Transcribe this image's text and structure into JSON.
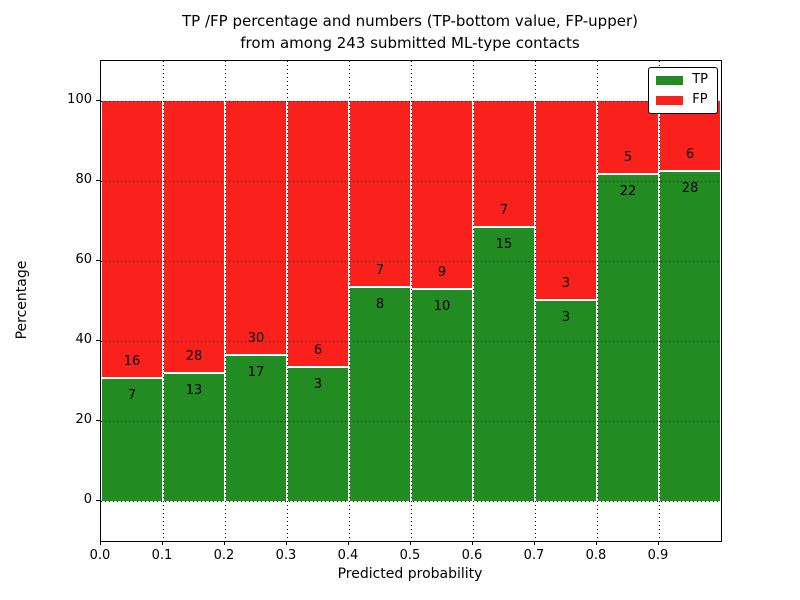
{
  "figure": {
    "title_line1": "TP /FP percentage and numbers (TP-bottom value, FP-upper)",
    "title_line2": "from among 243 submitted ML-type contacts"
  },
  "chart_data": {
    "type": "bar",
    "subtype": "stacked-percentage-histogram",
    "title": "TP /FP percentage and numbers (TP-bottom value, FP-upper) from among 243 submitted ML-type contacts",
    "xlabel": "Predicted probability",
    "ylabel": "Percentage",
    "xlim": [
      0.0,
      1.0
    ],
    "ylim": [
      -10,
      110
    ],
    "bin_width": 0.1,
    "bin_starts": [
      0.0,
      0.1,
      0.2,
      0.3,
      0.4,
      0.5,
      0.6,
      0.7,
      0.8,
      0.9
    ],
    "xtick_labels": [
      "0.0",
      "0.1",
      "0.2",
      "0.3",
      "0.4",
      "0.5",
      "0.6",
      "0.7",
      "0.8",
      "0.9"
    ],
    "ytick_values": [
      0,
      20,
      40,
      60,
      80,
      100
    ],
    "total_contacts": 243,
    "grid": {
      "style": "dotted",
      "color": "#000000"
    },
    "legend": {
      "position": "upper-right"
    },
    "series": [
      {
        "name": "TP",
        "color": "#228b22",
        "counts": [
          7,
          13,
          17,
          3,
          8,
          10,
          15,
          3,
          22,
          28
        ],
        "percent_heights": [
          30.43,
          31.71,
          36.17,
          33.33,
          53.33,
          52.63,
          68.18,
          50.0,
          81.48,
          82.35
        ]
      },
      {
        "name": "FP",
        "color": "#fa211c",
        "counts": [
          16,
          28,
          30,
          6,
          7,
          9,
          7,
          3,
          5,
          6
        ],
        "percent_heights": [
          69.57,
          68.29,
          63.83,
          66.67,
          46.67,
          47.37,
          31.82,
          50.0,
          18.52,
          17.65
        ]
      }
    ]
  }
}
